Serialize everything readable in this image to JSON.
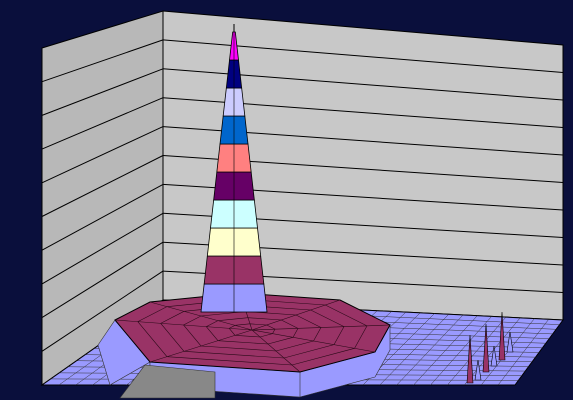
{
  "chart_data": {
    "type": "surface",
    "title": "",
    "xlabel": "",
    "ylabel": "",
    "zlabel": "",
    "legend": "none",
    "grid": true,
    "walls": {
      "back_wall_color": "#c8c8c8",
      "floor_color": "#9a9aff"
    },
    "band_colors": [
      "#9a9aff",
      "#993366",
      "#ffffcc",
      "#ccffff",
      "#660066",
      "#ff8080",
      "#0066cc",
      "#ccccff",
      "#000080",
      "#ff00ff"
    ],
    "z_levels": [
      0,
      1,
      2,
      3,
      4,
      5,
      6,
      7,
      8,
      9,
      10
    ],
    "peak": {
      "center_x": 0.45,
      "center_y": 0.45,
      "height": 10
    },
    "plateau": {
      "height": 1,
      "radius": 0.4
    },
    "edge_spikes": [
      {
        "x": 0.95,
        "y": 0.95,
        "height": 1.2
      },
      {
        "x": 0.97,
        "y": 0.9,
        "height": 0.8
      }
    ]
  },
  "colors": {
    "background": "#0a0f3c",
    "wall": "#c8c8c8",
    "gridline": "#000000",
    "floor": "#9a9aff",
    "plateau": "#993366"
  }
}
